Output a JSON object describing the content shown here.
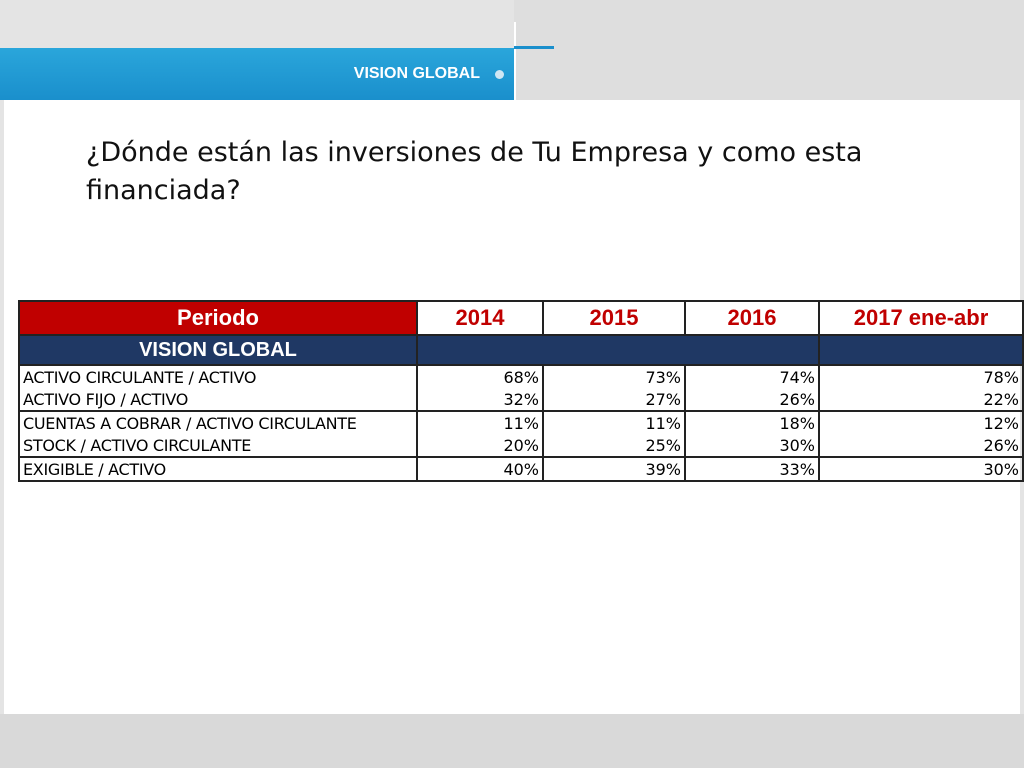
{
  "header": {
    "title": "VISION GLOBAL"
  },
  "question": "¿Dónde están las inversiones de Tu Empresa y como esta financiada?",
  "table": {
    "columns": [
      "Periodo",
      "2014",
      "2015",
      "2016",
      "2017 ene-abr"
    ],
    "section_label": "VISION GLOBAL",
    "rows": [
      {
        "label": "ACTIVO CIRCULANTE / ACTIVO",
        "values": [
          "68%",
          "73%",
          "74%",
          "78%"
        ]
      },
      {
        "label": "ACTIVO FIJO / ACTIVO",
        "values": [
          "32%",
          "27%",
          "26%",
          "22%"
        ]
      },
      {
        "label": "CUENTAS A COBRAR / ACTIVO CIRCULANTE",
        "values": [
          "11%",
          "11%",
          "18%",
          "12%"
        ]
      },
      {
        "label": "STOCK / ACTIVO CIRCULANTE",
        "values": [
          "20%",
          "25%",
          "30%",
          "26%"
        ]
      },
      {
        "label": "EXIGIBLE / ACTIVO",
        "values": [
          "40%",
          "39%",
          "33%",
          "30%"
        ]
      }
    ]
  },
  "colors": {
    "header_blue": "#1a8fcc",
    "periodo_red": "#c00000",
    "section_navy": "#1f3864"
  }
}
